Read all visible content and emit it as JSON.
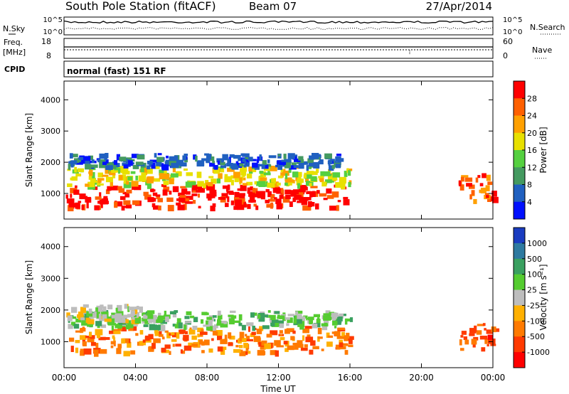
{
  "header": {
    "station": "South Pole Station (fitACF)",
    "beam": "Beam 07",
    "date": "27/Apr/2014"
  },
  "status_panel": {
    "nsky_label": "N.Sky",
    "nsky_ticks": [
      "10^5",
      "10^0"
    ],
    "nsearch_label": "N.Search",
    "nsearch_ticks": [
      "10^5",
      "10^0"
    ],
    "freq_label_1": "Freq.",
    "freq_label_2": "[MHz]",
    "freq_ticks": [
      "18",
      "8"
    ],
    "nave_label": "Nave",
    "nave_ticks": [
      "60",
      "0"
    ],
    "cpid_label": "CPID",
    "cpid_value": "normal (fast) 151 RF"
  },
  "chart_data": [
    {
      "type": "heatmap",
      "name": "power",
      "ylabel": "Slant Range [km]",
      "yticks": [
        "4000",
        "3000",
        "2000",
        "1000"
      ],
      "ytick_values": [
        4000,
        3000,
        2000,
        1000
      ],
      "ylim": [
        180,
        4600
      ],
      "colorbar_label": "Power [dB]",
      "colorbar_ticks": [
        "28",
        "24",
        "20",
        "16",
        "12",
        "8",
        "4"
      ],
      "colorbar_colors": [
        "#ff0000",
        "#ff6000",
        "#ffa000",
        "#e8e000",
        "#55d040",
        "#449a60",
        "#2060c0",
        "#0010ff"
      ],
      "echo_bands": [
        {
          "t0": 0.1,
          "t1": 16.0,
          "r0": 600,
          "r1": 1300,
          "level": 0
        },
        {
          "t0": 0.1,
          "t1": 16.0,
          "r0": 1300,
          "r1": 1900,
          "level": 3
        },
        {
          "t0": 0.1,
          "t1": 15.5,
          "r0": 1900,
          "r1": 2300,
          "level": 6
        },
        {
          "t0": 22.0,
          "t1": 24.0,
          "r0": 800,
          "r1": 1700,
          "level": 1
        }
      ]
    },
    {
      "type": "heatmap",
      "name": "velocity",
      "ylabel": "Slant Range [km]",
      "yticks": [
        "4000",
        "3000",
        "2000",
        "1000"
      ],
      "ytick_values": [
        4000,
        3000,
        2000,
        1000
      ],
      "ylim": [
        180,
        4600
      ],
      "xlabel": "Time UT",
      "xticks": [
        "00:00",
        "04:00",
        "08:00",
        "12:00",
        "16:00",
        "20:00",
        "00:00"
      ],
      "xlim": [
        0,
        24
      ],
      "colorbar_label": "Velocity [m s⁻¹]",
      "colorbar_ticks": [
        "1000",
        "500",
        "100",
        "25",
        "-25",
        "-100",
        "-500",
        "-1000"
      ],
      "colorbar_colors": [
        "#1a3cc0",
        "#2e7aa0",
        "#3aa060",
        "#55cc30",
        "#bdbdbd",
        "#ffb000",
        "#ff7a00",
        "#ff3a00",
        "#ff0000"
      ],
      "echo_bands": [
        {
          "t0": 0.1,
          "t1": 16.0,
          "r0": 700,
          "r1": 1500,
          "level": 6
        },
        {
          "t0": 0.1,
          "t1": 16.0,
          "r0": 1500,
          "r1": 2000,
          "level": 3
        },
        {
          "t0": 0.1,
          "t1": 5.0,
          "r0": 1700,
          "r1": 2200,
          "level": 4
        },
        {
          "t0": 22.0,
          "t1": 24.0,
          "r0": 800,
          "r1": 1600,
          "level": 7
        }
      ]
    }
  ]
}
